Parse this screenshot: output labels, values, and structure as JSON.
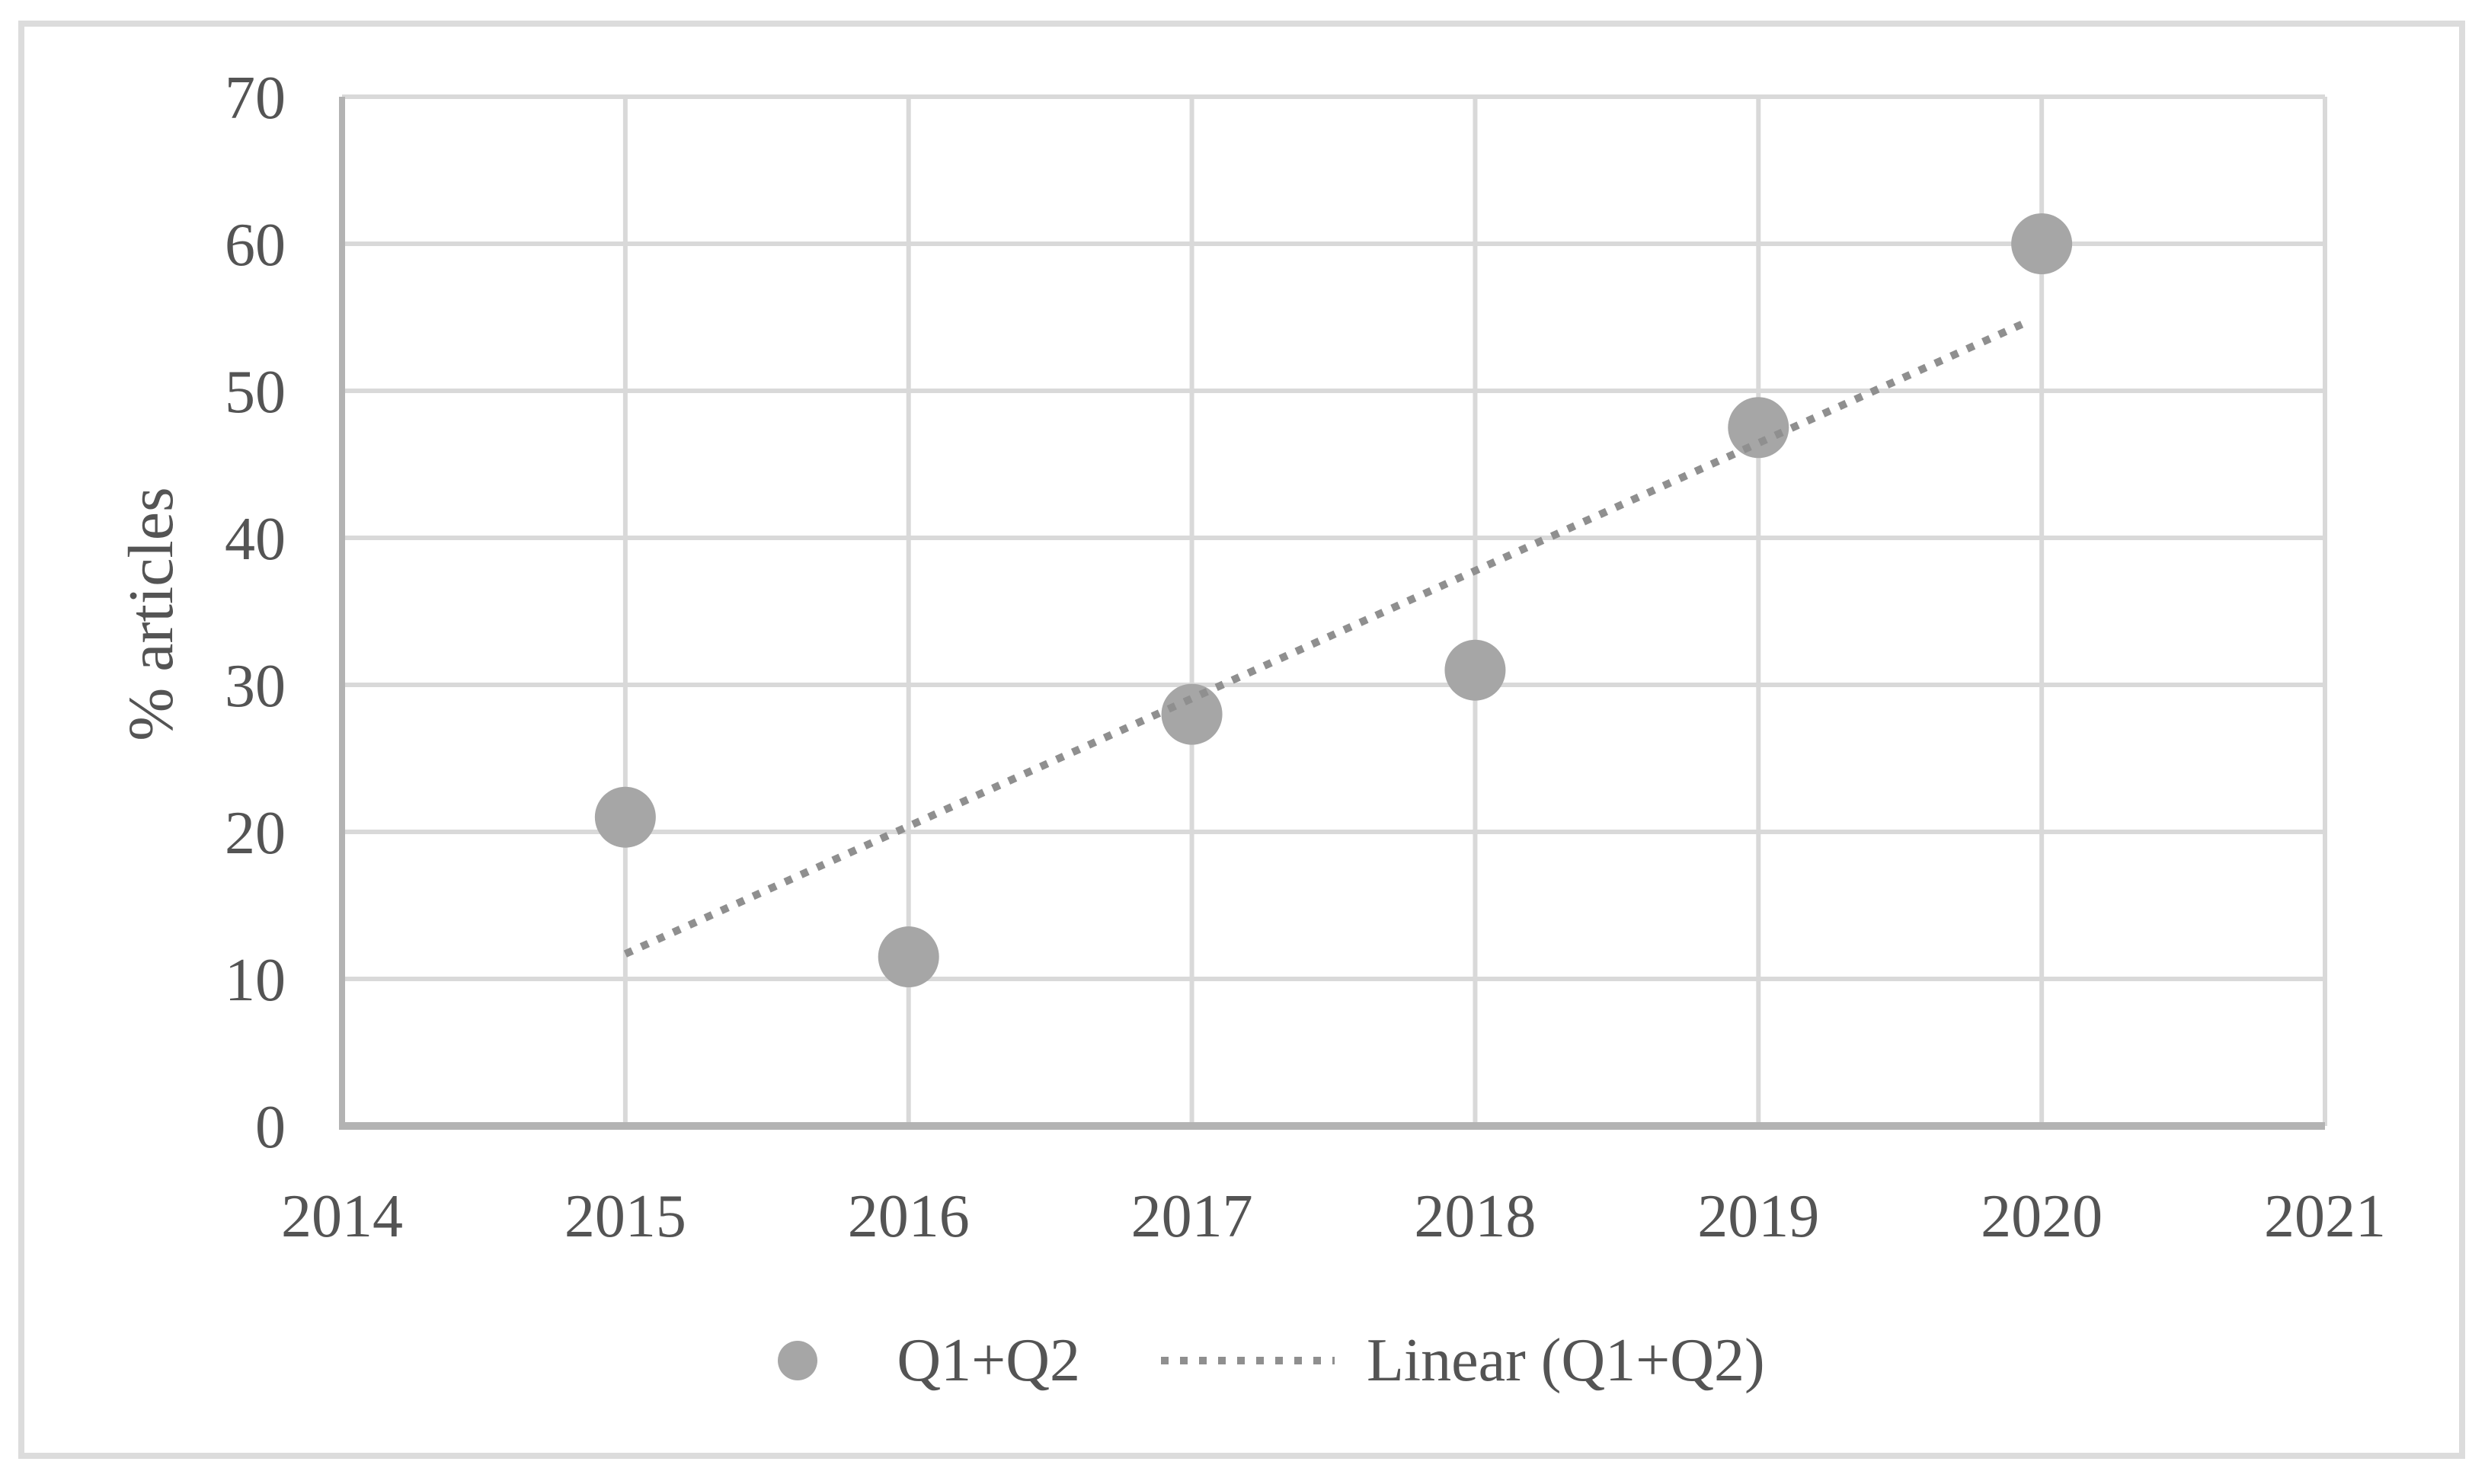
{
  "figure": {
    "background_color": "#ffffff",
    "frame_color": "#dcdcdc"
  },
  "chart_data": {
    "type": "scatter",
    "title": "",
    "xlabel": "",
    "ylabel": "% articles",
    "xlim": [
      2014,
      2021
    ],
    "ylim": [
      0,
      70
    ],
    "x_ticks": [
      "2014",
      "2015",
      "2016",
      "2017",
      "2018",
      "2019",
      "2020",
      "2021"
    ],
    "y_ticks": [
      "0",
      "10",
      "20",
      "30",
      "40",
      "50",
      "60",
      "70"
    ],
    "grid": true,
    "legend_position": "bottom-center",
    "colors": {
      "marker": "#a6a6a6",
      "trendline": "#8f8f8f",
      "gridline": "#d9d9d9",
      "axis_line": "#b3b3b3",
      "tick_text": "#545454",
      "frame": "#dcdcdc"
    },
    "series": [
      {
        "name": "Q1+Q2",
        "kind": "scatter",
        "marker": "circle",
        "marker_color": "#a6a6a6",
        "x": [
          2015,
          2016,
          2017,
          2018,
          2019,
          2020
        ],
        "y": [
          21,
          11.5,
          28,
          31,
          47.5,
          60
        ]
      },
      {
        "name": "Linear (Q1+Q2)",
        "kind": "trendline",
        "line_style": "dotted",
        "color": "#8f8f8f",
        "start": {
          "x": 2015,
          "y": 11.7
        },
        "end": {
          "x": 2019.95,
          "y": 54.7
        }
      }
    ]
  }
}
